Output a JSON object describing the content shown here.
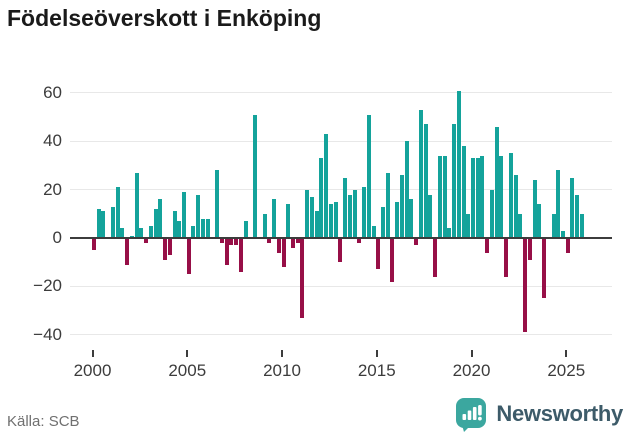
{
  "title": "Födelseöverskott i Enköping",
  "source": "Källa: SCB",
  "brand": {
    "name": "Newsworthy",
    "logo_icon": "bar-chart-speech-bubble-icon",
    "logo_color": "#3BA79F",
    "text_color": "#3D5B69"
  },
  "colors": {
    "positive": "#14A39B",
    "negative": "#970F47",
    "gridline": "#E8E8E8",
    "zero_line": "#3C3C3C",
    "axis_text": "#3C3C3C",
    "title_text": "#1A1A1A",
    "source_text": "#707070"
  },
  "chart_data": {
    "type": "bar",
    "title": "Födelseöverskott i Enköping",
    "xlabel": "",
    "ylabel": "",
    "frequency": "quarterly",
    "start": "2000 Q1",
    "end": "2025 Q4",
    "x_tick_years": [
      2000,
      2005,
      2010,
      2015,
      2020,
      2025
    ],
    "y_ticks": [
      60,
      40,
      20,
      0,
      -20,
      -40
    ],
    "ylim": [
      -47,
      63
    ],
    "grid": true,
    "legend": false,
    "series": [
      {
        "name": "Födelseöverskott",
        "values": [
          -5,
          12,
          11,
          0,
          13,
          21,
          4,
          -11,
          1,
          27,
          4,
          -2,
          5,
          12,
          16,
          -9,
          -7,
          11,
          7,
          19,
          -15,
          5,
          18,
          8,
          8,
          0,
          28,
          -2,
          -11,
          -3,
          -3,
          -14,
          7,
          0,
          51,
          0,
          10,
          -2,
          16,
          -6,
          -12,
          14,
          -4,
          -2,
          -33,
          20,
          17,
          11,
          33,
          43,
          14,
          15,
          -10,
          25,
          18,
          20,
          -2,
          21,
          51,
          5,
          -13,
          13,
          27,
          -18,
          15,
          26,
          40,
          16,
          -3,
          53,
          47,
          18,
          -16,
          34,
          34,
          4,
          47,
          61,
          38,
          10,
          33,
          33,
          34,
          -6,
          20,
          46,
          34,
          -16,
          35,
          26,
          10,
          -39,
          -9,
          24,
          14,
          -25,
          0,
          10,
          28,
          3,
          -6,
          25,
          18,
          10
        ]
      }
    ]
  }
}
